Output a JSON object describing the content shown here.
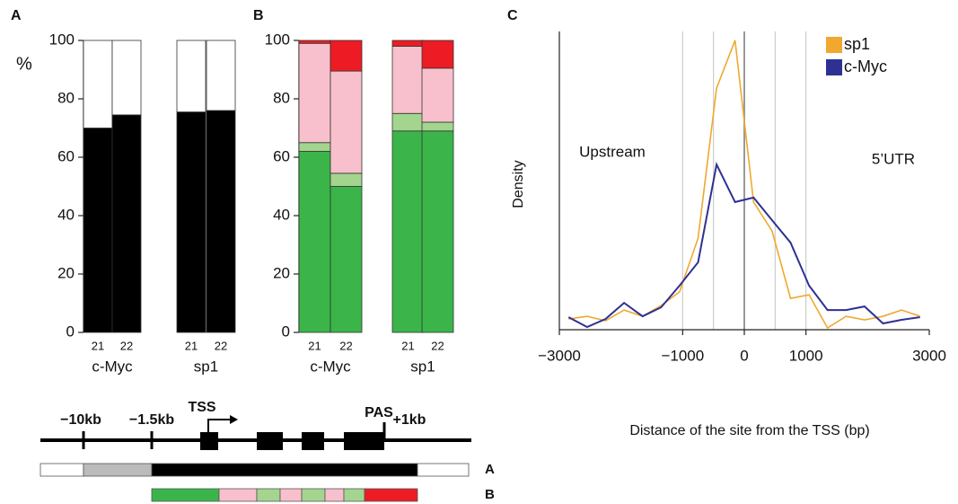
{
  "chart_data": [
    {
      "type": "bar",
      "stacked": true,
      "panel_label": "A",
      "y_label": "%",
      "categories": [
        "21",
        "22",
        "21",
        "22"
      ],
      "groups": [
        "c-Myc",
        "sp1"
      ],
      "series": [
        {
          "color": "#000000",
          "values": [
            70,
            74.5,
            75.5,
            76
          ]
        },
        {
          "color": "#ffffff",
          "values": [
            30,
            25.5,
            24.5,
            24
          ]
        }
      ],
      "ylim": [
        0,
        100
      ],
      "yticks": [
        0,
        20,
        40,
        60,
        80,
        100
      ]
    },
    {
      "type": "bar",
      "stacked": true,
      "panel_label": "B",
      "categories": [
        "21",
        "22",
        "21",
        "22"
      ],
      "groups": [
        "c-Myc",
        "sp1"
      ],
      "series": [
        {
          "color": "#3bb54a",
          "values": [
            62,
            50,
            69,
            69
          ]
        },
        {
          "color": "#a3d58f",
          "values": [
            3,
            4.5,
            6,
            3
          ]
        },
        {
          "color": "#f8c0cc",
          "values": [
            34,
            35,
            23,
            18.5
          ]
        },
        {
          "color": "#ed1c24",
          "values": [
            1,
            10.5,
            2,
            9.5
          ]
        }
      ],
      "ylim": [
        0,
        100
      ],
      "yticks": [
        0,
        20,
        40,
        60,
        80,
        100
      ]
    },
    {
      "type": "line",
      "panel_label": "C",
      "x_label": "Distance of the site from the TSS (bp)",
      "y_label": "Density",
      "annotations": [
        "Upstream",
        "5’UTR"
      ],
      "x": [
        -2850,
        -2550,
        -2250,
        -1950,
        -1650,
        -1350,
        -1050,
        -750,
        -450,
        -150,
        150,
        450,
        750,
        1050,
        1350,
        1650,
        1950,
        2250,
        2550,
        2850
      ],
      "series": [
        {
          "name": "sp1",
          "color": "#f0a830",
          "values": [
            0.036,
            0.045,
            0.03,
            0.066,
            0.045,
            0.081,
            0.127,
            0.307,
            0.81,
            0.97,
            0.428,
            0.331,
            0.105,
            0.117,
            0.006,
            0.045,
            0.033,
            0.045,
            0.066,
            0.045
          ]
        },
        {
          "name": "c-Myc",
          "color": "#2e3192",
          "values": [
            0.042,
            0.009,
            0.036,
            0.09,
            0.045,
            0.075,
            0.148,
            0.226,
            0.554,
            0.428,
            0.443,
            0.367,
            0.292,
            0.148,
            0.066,
            0.066,
            0.078,
            0.021,
            0.033,
            0.042
          ]
        }
      ],
      "xlim": [
        -3000,
        3000
      ],
      "ylim": [
        0,
        1
      ],
      "xticks": [
        {
          "value": -3000,
          "label": "−3000"
        },
        {
          "value": -1000,
          "label": "−1000"
        },
        0,
        1000,
        3000
      ],
      "vlines": [
        -1000,
        -500,
        0,
        500,
        1000
      ],
      "legend": "top-right"
    }
  ],
  "diagram": {
    "labels": [
      "−10kb",
      "−1.5kb",
      "TSS",
      "PAS",
      "+1kb"
    ],
    "rows": [
      "A",
      "B"
    ]
  }
}
